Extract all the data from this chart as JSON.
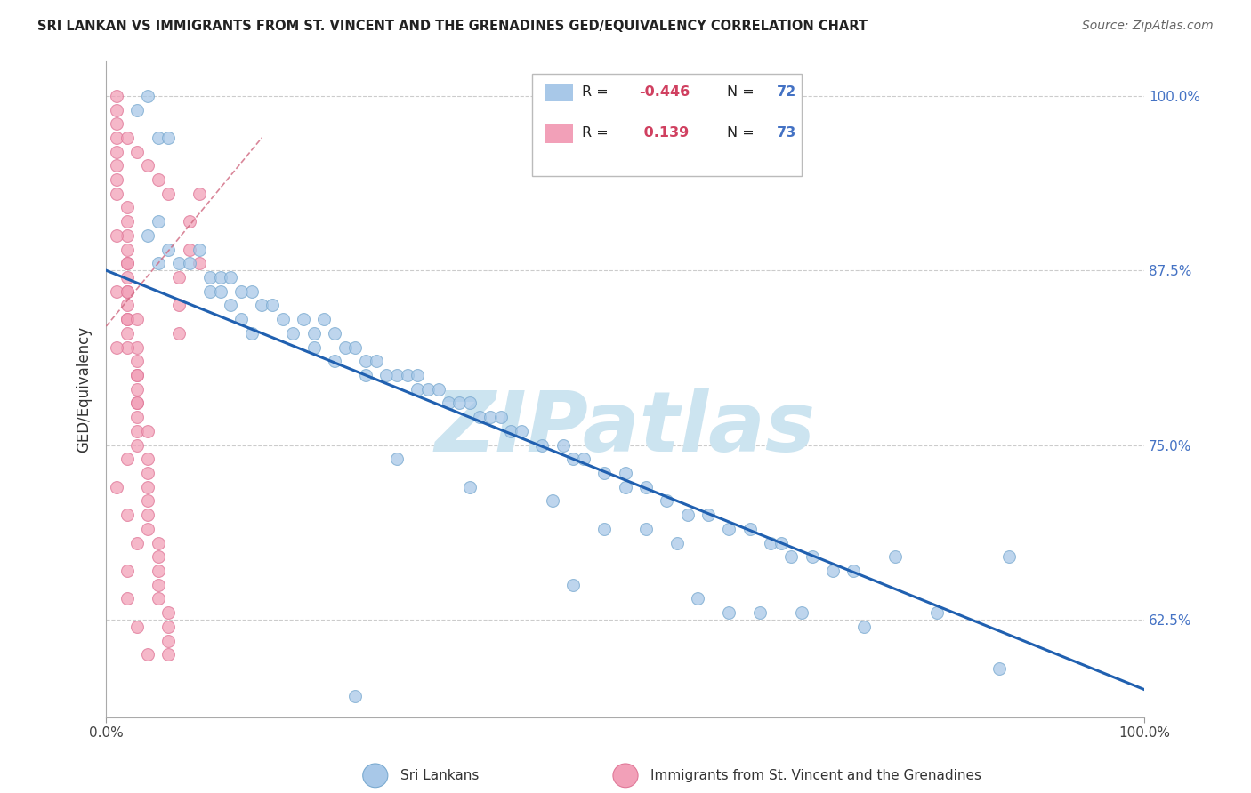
{
  "title": "SRI LANKAN VS IMMIGRANTS FROM ST. VINCENT AND THE GRENADINES GED/EQUIVALENCY CORRELATION CHART",
  "source": "Source: ZipAtlas.com",
  "ylabel": "GED/Equivalency",
  "xlabel": "",
  "watermark": "ZIPatlas",
  "legend_blue_r": "-0.446",
  "legend_blue_n": "72",
  "legend_pink_r": "0.139",
  "legend_pink_n": "73",
  "xmin": 0.0,
  "xmax": 1.0,
  "ymin": 0.555,
  "ymax": 1.025,
  "yticks": [
    0.625,
    0.75,
    0.875,
    1.0
  ],
  "ytick_labels": [
    "62.5%",
    "75.0%",
    "87.5%",
    "100.0%"
  ],
  "xticks": [
    0.0,
    1.0
  ],
  "xtick_labels": [
    "0.0%",
    "100.0%"
  ],
  "blue_scatter_x": [
    0.03,
    0.04,
    0.05,
    0.06,
    0.05,
    0.04,
    0.06,
    0.07,
    0.05,
    0.08,
    0.09,
    0.1,
    0.11,
    0.12,
    0.13,
    0.1,
    0.11,
    0.12,
    0.14,
    0.15,
    0.14,
    0.13,
    0.16,
    0.17,
    0.18,
    0.19,
    0.2,
    0.21,
    0.2,
    0.22,
    0.23,
    0.22,
    0.24,
    0.25,
    0.25,
    0.26,
    0.27,
    0.28,
    0.29,
    0.3,
    0.3,
    0.31,
    0.32,
    0.33,
    0.34,
    0.35,
    0.36,
    0.37,
    0.38,
    0.39,
    0.4,
    0.42,
    0.44,
    0.45,
    0.46,
    0.48,
    0.5,
    0.5,
    0.52,
    0.54,
    0.56,
    0.58,
    0.6,
    0.62,
    0.64,
    0.65,
    0.66,
    0.68,
    0.7,
    0.72,
    0.87,
    0.24
  ],
  "blue_scatter_y": [
    0.99,
    1.0,
    0.97,
    0.97,
    0.91,
    0.9,
    0.89,
    0.88,
    0.88,
    0.88,
    0.89,
    0.87,
    0.87,
    0.87,
    0.86,
    0.86,
    0.86,
    0.85,
    0.86,
    0.85,
    0.83,
    0.84,
    0.85,
    0.84,
    0.83,
    0.84,
    0.83,
    0.84,
    0.82,
    0.83,
    0.82,
    0.81,
    0.82,
    0.81,
    0.8,
    0.81,
    0.8,
    0.8,
    0.8,
    0.8,
    0.79,
    0.79,
    0.79,
    0.78,
    0.78,
    0.78,
    0.77,
    0.77,
    0.77,
    0.76,
    0.76,
    0.75,
    0.75,
    0.74,
    0.74,
    0.73,
    0.73,
    0.72,
    0.72,
    0.71,
    0.7,
    0.7,
    0.69,
    0.69,
    0.68,
    0.68,
    0.67,
    0.67,
    0.66,
    0.66,
    0.67,
    0.57
  ],
  "blue_extra_x": [
    0.28,
    0.35,
    0.43,
    0.45,
    0.48,
    0.52,
    0.55,
    0.57,
    0.6,
    0.63,
    0.67,
    0.73,
    0.76,
    0.8,
    0.86
  ],
  "blue_extra_y": [
    0.74,
    0.72,
    0.71,
    0.65,
    0.69,
    0.69,
    0.68,
    0.64,
    0.63,
    0.63,
    0.63,
    0.62,
    0.67,
    0.63,
    0.59
  ],
  "pink_scatter_x": [
    0.01,
    0.01,
    0.01,
    0.01,
    0.01,
    0.01,
    0.01,
    0.01,
    0.02,
    0.02,
    0.02,
    0.02,
    0.02,
    0.02,
    0.02,
    0.02,
    0.02,
    0.02,
    0.03,
    0.03,
    0.03,
    0.03,
    0.03,
    0.03,
    0.03,
    0.03,
    0.04,
    0.04,
    0.04,
    0.04,
    0.04,
    0.04,
    0.05,
    0.05,
    0.05,
    0.05,
    0.05,
    0.06,
    0.06,
    0.06,
    0.06,
    0.07,
    0.07,
    0.07,
    0.08,
    0.08,
    0.09,
    0.09,
    0.02,
    0.03,
    0.04,
    0.05,
    0.06,
    0.01,
    0.02,
    0.02,
    0.03,
    0.03,
    0.04,
    0.02,
    0.01,
    0.02,
    0.03,
    0.02,
    0.02,
    0.03,
    0.04,
    0.01,
    0.02,
    0.02,
    0.03,
    0.01
  ],
  "pink_scatter_y": [
    1.0,
    0.99,
    0.98,
    0.97,
    0.96,
    0.95,
    0.94,
    0.93,
    0.92,
    0.91,
    0.9,
    0.89,
    0.88,
    0.87,
    0.86,
    0.85,
    0.84,
    0.83,
    0.82,
    0.81,
    0.8,
    0.79,
    0.78,
    0.77,
    0.76,
    0.75,
    0.74,
    0.73,
    0.72,
    0.71,
    0.7,
    0.69,
    0.68,
    0.67,
    0.66,
    0.65,
    0.64,
    0.63,
    0.62,
    0.61,
    0.6,
    0.87,
    0.85,
    0.83,
    0.91,
    0.89,
    0.93,
    0.88,
    0.97,
    0.96,
    0.95,
    0.94,
    0.93,
    0.86,
    0.84,
    0.82,
    0.8,
    0.78,
    0.76,
    0.74,
    0.72,
    0.7,
    0.68,
    0.66,
    0.64,
    0.62,
    0.6,
    0.9,
    0.88,
    0.86,
    0.84,
    0.82
  ],
  "blue_line_x": [
    0.0,
    1.0
  ],
  "blue_line_y": [
    0.875,
    0.575
  ],
  "pink_line_x": [
    0.0,
    0.15
  ],
  "pink_line_y": [
    0.835,
    0.97
  ],
  "scatter_color_blue": "#a8c8e8",
  "scatter_edgecolor_blue": "#7aaad0",
  "scatter_color_pink": "#f2a0b8",
  "scatter_edgecolor_pink": "#e07898",
  "line_color_blue": "#2060b0",
  "line_color_pink": "#d06880",
  "title_color": "#222222",
  "source_color": "#666666",
  "grid_color": "#cccccc",
  "watermark_color": "#cce4f0",
  "axis_label_color": "#333333",
  "tick_color_right": "#4472c4",
  "legend_r_color": "#d04060",
  "legend_n_color": "#4472c4",
  "legend_box_border": "#bbbbbb"
}
